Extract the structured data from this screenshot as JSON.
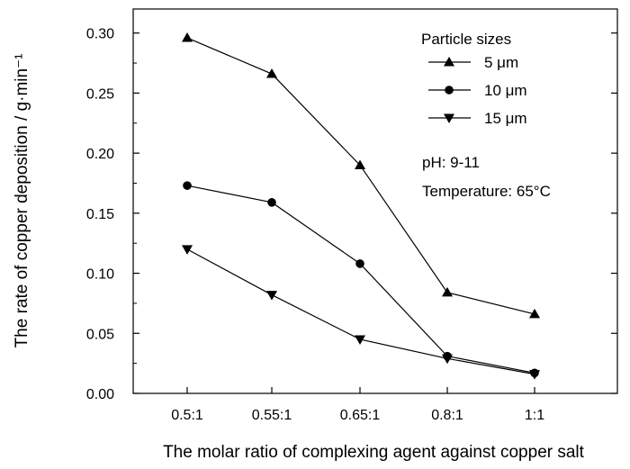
{
  "chart_data": {
    "type": "line",
    "categories": [
      "0.5:1",
      "0.55:1",
      "0.65:1",
      "0.8:1",
      "1:1"
    ],
    "series": [
      {
        "name": "5 μm",
        "marker": "triangle-up",
        "values": [
          0.296,
          0.266,
          0.19,
          0.084,
          0.066
        ]
      },
      {
        "name": "10 μm",
        "marker": "circle",
        "values": [
          0.173,
          0.159,
          0.108,
          0.031,
          0.017
        ]
      },
      {
        "name": "15 μm",
        "marker": "triangle-down",
        "values": [
          0.12,
          0.082,
          0.045,
          0.029,
          0.016
        ]
      }
    ],
    "xlabel": "The molar ratio of complexing agent against copper salt",
    "ylabel": "The rate of copper deposition / g·min⁻¹",
    "ylim": [
      0.0,
      0.32
    ],
    "yticks": [
      "0.00",
      "0.05",
      "0.10",
      "0.15",
      "0.20",
      "0.25",
      "0.30"
    ],
    "legend_title": "Particle sizes",
    "legend_position": "top-right",
    "annotations": [
      "pH: 9-11",
      "Temperature: 65°C"
    ],
    "grid": false,
    "color": "#000000"
  }
}
